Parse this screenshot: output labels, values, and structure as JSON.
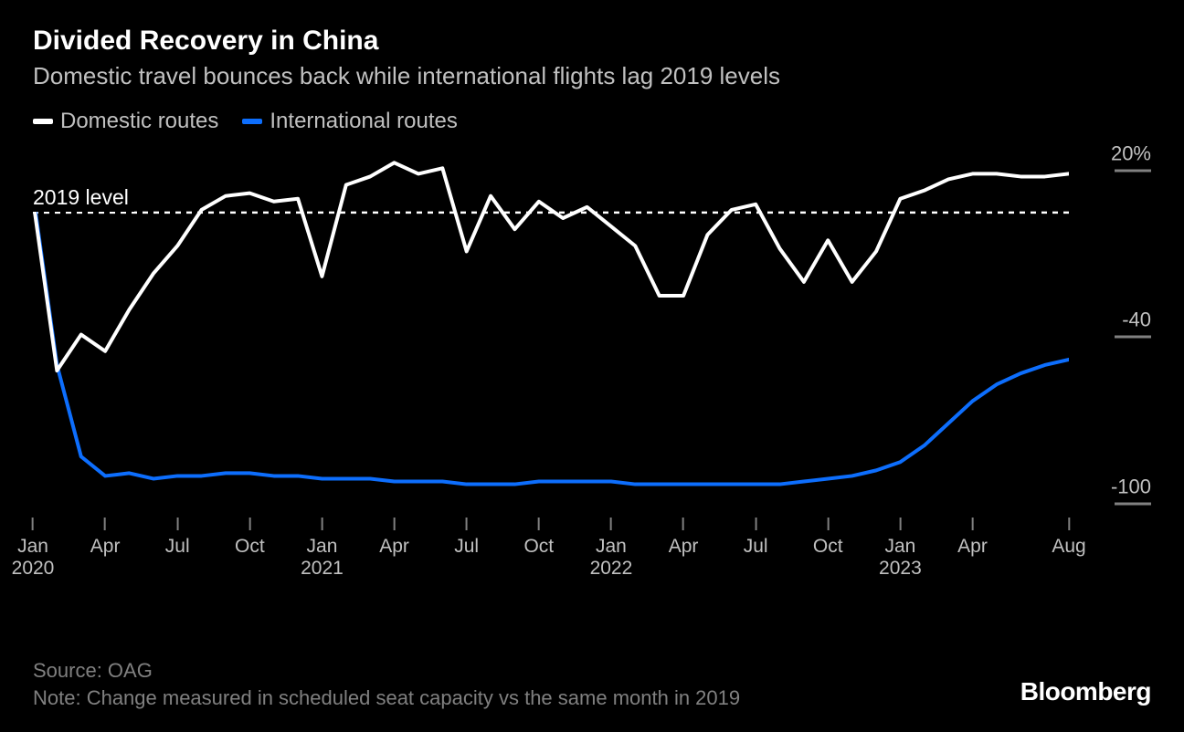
{
  "title": "Divided Recovery in China",
  "subtitle": "Domestic travel bounces back while international flights lag 2019 levels",
  "legend": {
    "series1": {
      "label": "Domestic routes",
      "color": "#ffffff"
    },
    "series2": {
      "label": "International routes",
      "color": "#0d6efd"
    }
  },
  "chart": {
    "type": "line",
    "background_color": "#000000",
    "line_width": 4,
    "ylim": [
      -110,
      25
    ],
    "yticks": [
      {
        "value": 20,
        "label": "20%"
      },
      {
        "value": -40,
        "label": "-40"
      },
      {
        "value": -100,
        "label": "-100"
      }
    ],
    "baseline": {
      "value": 0,
      "label": "2019 level",
      "dash": "6,6",
      "color": "#ffffff"
    },
    "x_domain": [
      0,
      43
    ],
    "x_ticks": [
      {
        "pos": 0,
        "month": "Jan",
        "year": "2020"
      },
      {
        "pos": 3,
        "month": "Apr"
      },
      {
        "pos": 6,
        "month": "Jul"
      },
      {
        "pos": 9,
        "month": "Oct"
      },
      {
        "pos": 12,
        "month": "Jan",
        "year": "2021"
      },
      {
        "pos": 15,
        "month": "Apr"
      },
      {
        "pos": 18,
        "month": "Jul"
      },
      {
        "pos": 21,
        "month": "Oct"
      },
      {
        "pos": 24,
        "month": "Jan",
        "year": "2022"
      },
      {
        "pos": 27,
        "month": "Apr"
      },
      {
        "pos": 30,
        "month": "Jul"
      },
      {
        "pos": 33,
        "month": "Oct"
      },
      {
        "pos": 36,
        "month": "Jan",
        "year": "2023"
      },
      {
        "pos": 39,
        "month": "Apr"
      },
      {
        "pos": 43,
        "month": "Aug"
      }
    ],
    "series": {
      "domestic": {
        "color": "#ffffff",
        "points": [
          [
            0,
            5
          ],
          [
            1,
            -57
          ],
          [
            2,
            -44
          ],
          [
            3,
            -50
          ],
          [
            4,
            -35
          ],
          [
            5,
            -22
          ],
          [
            6,
            -12
          ],
          [
            7,
            1
          ],
          [
            8,
            6
          ],
          [
            9,
            7
          ],
          [
            10,
            4
          ],
          [
            11,
            5
          ],
          [
            12,
            -23
          ],
          [
            13,
            10
          ],
          [
            14,
            13
          ],
          [
            15,
            18
          ],
          [
            16,
            14
          ],
          [
            17,
            16
          ],
          [
            18,
            -14
          ],
          [
            19,
            6
          ],
          [
            20,
            -6
          ],
          [
            21,
            4
          ],
          [
            22,
            -2
          ],
          [
            23,
            2
          ],
          [
            24,
            -5
          ],
          [
            25,
            -12
          ],
          [
            26,
            -30
          ],
          [
            27,
            -30
          ],
          [
            28,
            -8
          ],
          [
            29,
            1
          ],
          [
            30,
            3
          ],
          [
            31,
            -13
          ],
          [
            32,
            -25
          ],
          [
            33,
            -10
          ],
          [
            34,
            -25
          ],
          [
            35,
            -14
          ],
          [
            36,
            5
          ],
          [
            37,
            8
          ],
          [
            38,
            12
          ],
          [
            39,
            14
          ],
          [
            40,
            14
          ],
          [
            41,
            13
          ],
          [
            42,
            13
          ],
          [
            43,
            14
          ]
        ]
      },
      "international": {
        "color": "#0d6efd",
        "points": [
          [
            0,
            7
          ],
          [
            1,
            -55
          ],
          [
            2,
            -88
          ],
          [
            3,
            -95
          ],
          [
            4,
            -94
          ],
          [
            5,
            -96
          ],
          [
            6,
            -95
          ],
          [
            7,
            -95
          ],
          [
            8,
            -94
          ],
          [
            9,
            -94
          ],
          [
            10,
            -95
          ],
          [
            11,
            -95
          ],
          [
            12,
            -96
          ],
          [
            13,
            -96
          ],
          [
            14,
            -96
          ],
          [
            15,
            -97
          ],
          [
            16,
            -97
          ],
          [
            17,
            -97
          ],
          [
            18,
            -98
          ],
          [
            19,
            -98
          ],
          [
            20,
            -98
          ],
          [
            21,
            -97
          ],
          [
            22,
            -97
          ],
          [
            23,
            -97
          ],
          [
            24,
            -97
          ],
          [
            25,
            -98
          ],
          [
            26,
            -98
          ],
          [
            27,
            -98
          ],
          [
            28,
            -98
          ],
          [
            29,
            -98
          ],
          [
            30,
            -98
          ],
          [
            31,
            -98
          ],
          [
            32,
            -97
          ],
          [
            33,
            -96
          ],
          [
            34,
            -95
          ],
          [
            35,
            -93
          ],
          [
            36,
            -90
          ],
          [
            37,
            -84
          ],
          [
            38,
            -76
          ],
          [
            39,
            -68
          ],
          [
            40,
            -62
          ],
          [
            41,
            -58
          ],
          [
            42,
            -55
          ],
          [
            43,
            -53
          ]
        ]
      }
    }
  },
  "source": "Source: OAG",
  "note": "Note: Change measured in scheduled seat capacity vs the same month in 2019",
  "brand": "Bloomberg"
}
